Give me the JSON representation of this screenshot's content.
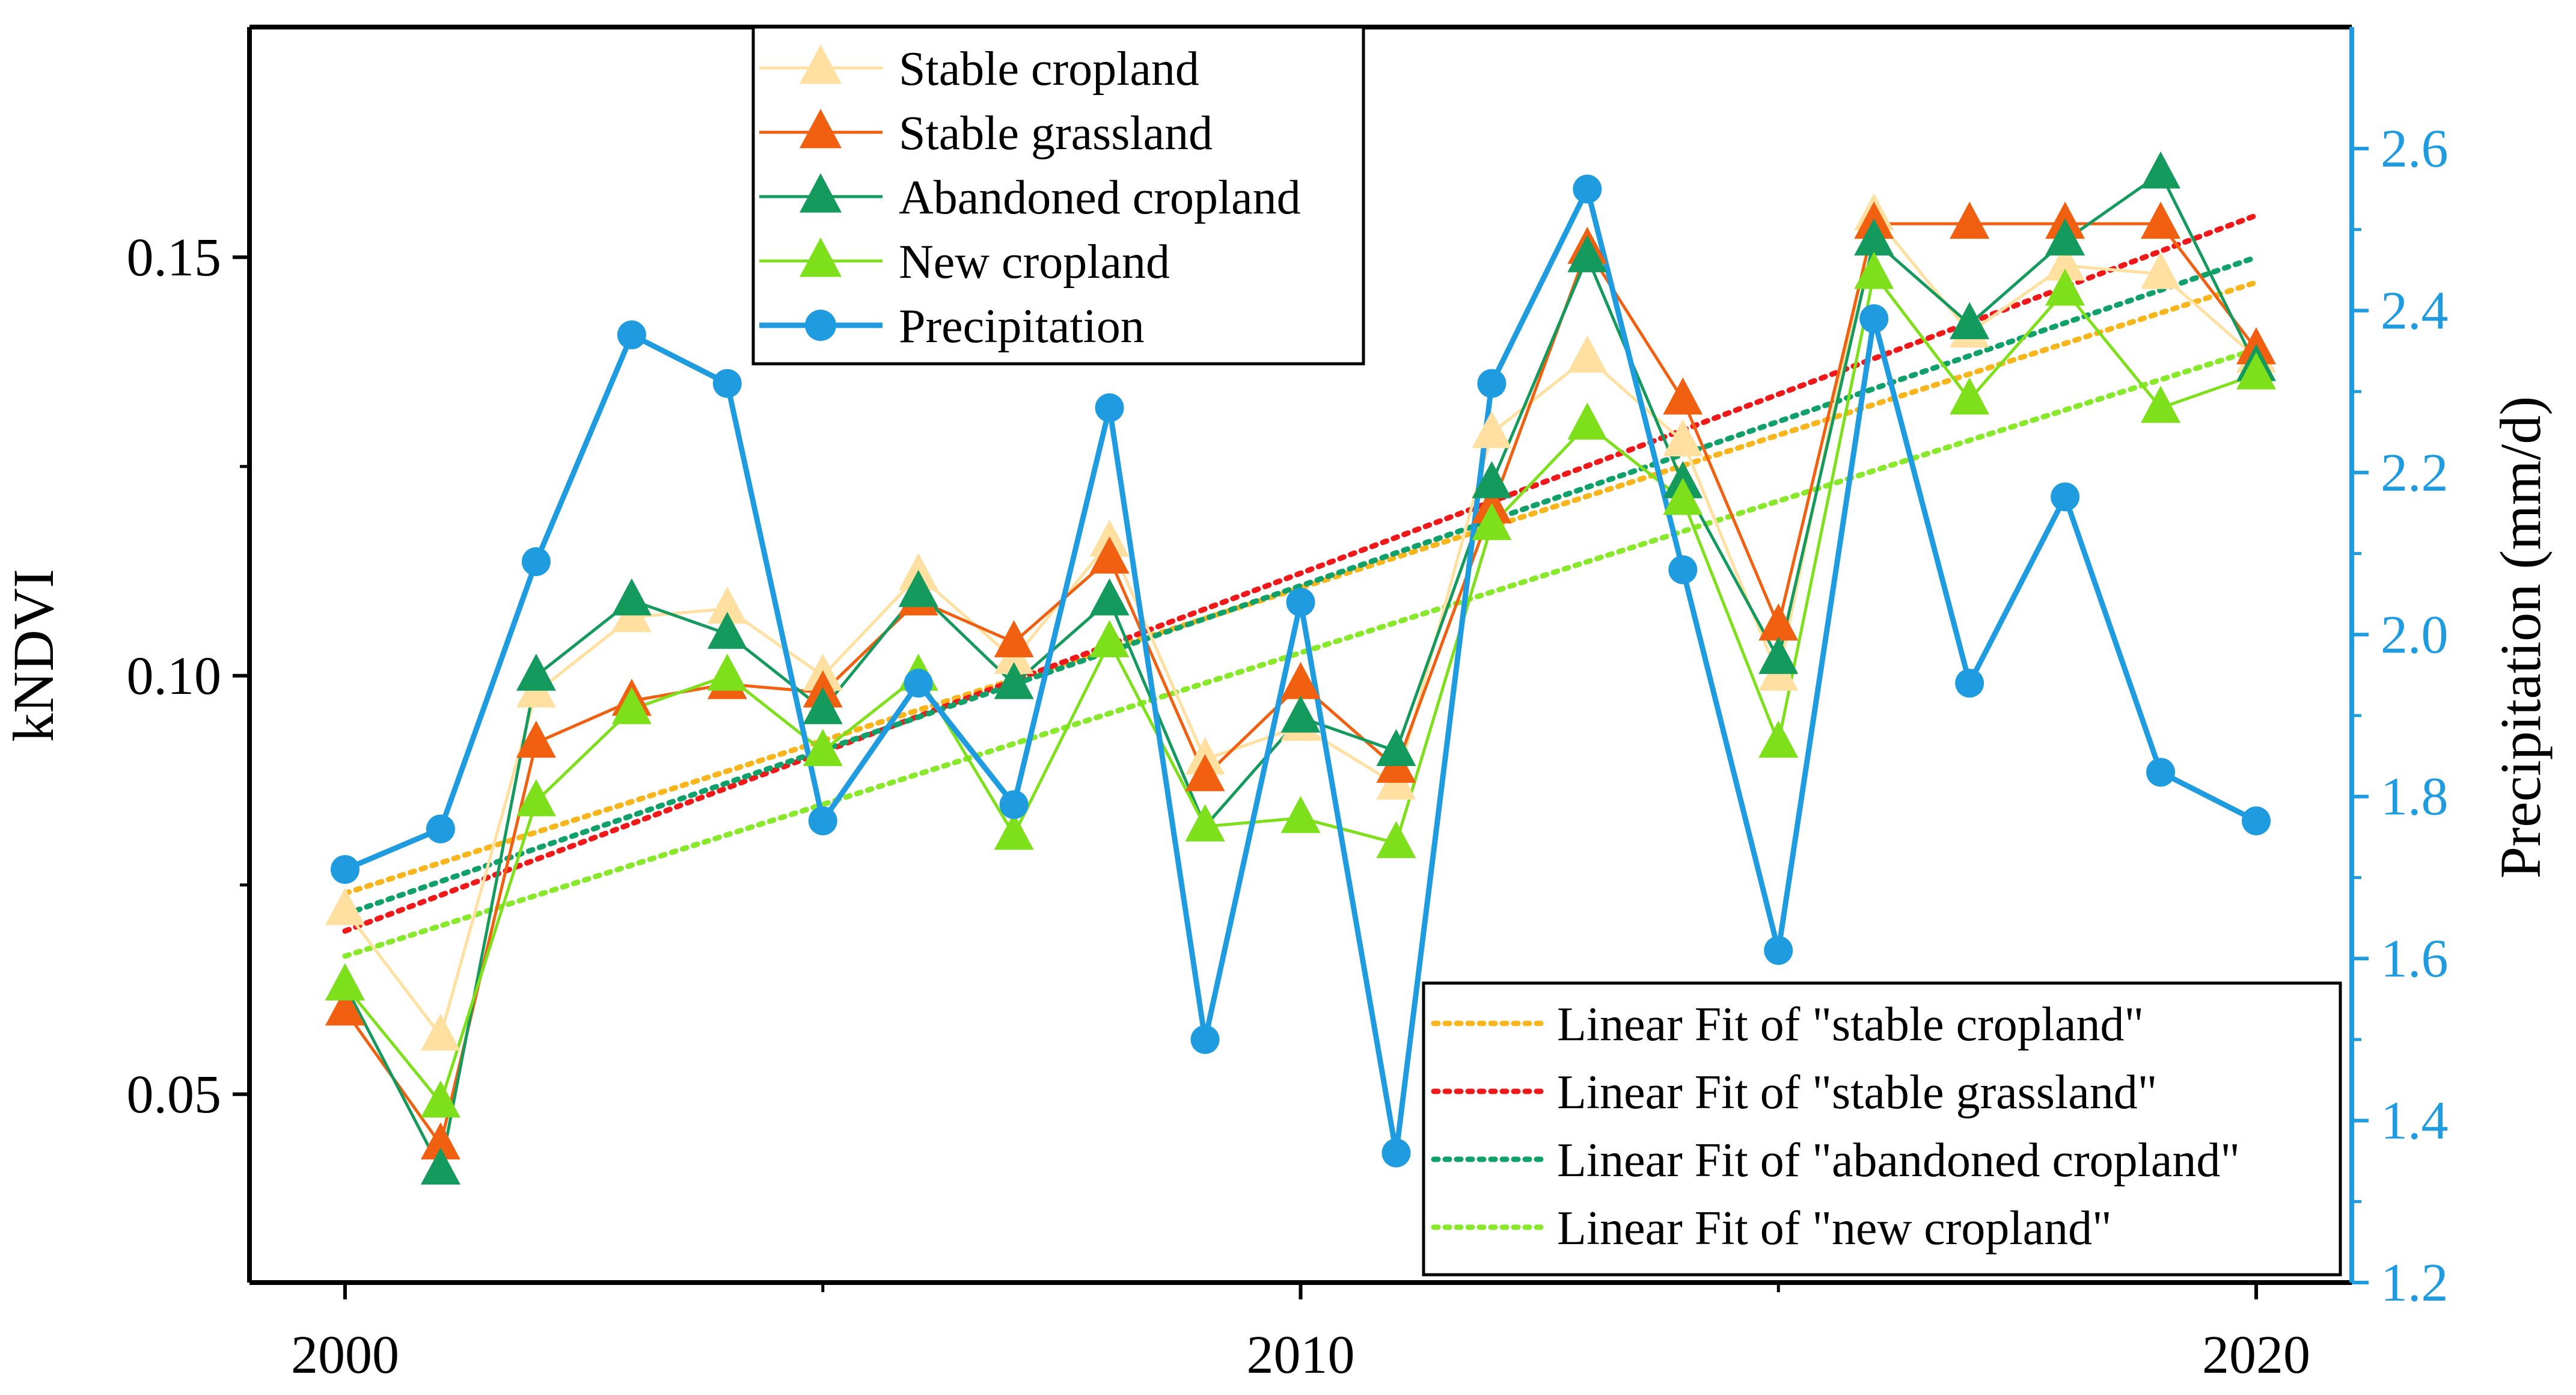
{
  "chart_data": {
    "type": "line",
    "title": "",
    "x": [
      2000,
      2001,
      2002,
      2003,
      2004,
      2005,
      2006,
      2007,
      2008,
      2009,
      2010,
      2011,
      2012,
      2013,
      2014,
      2015,
      2016,
      2017,
      2018,
      2019,
      2020
    ],
    "xlabel": "",
    "xticks": [
      2000,
      2010,
      2020
    ],
    "xtick_labels": [
      "2000",
      "2010",
      "2020"
    ],
    "xlim": [
      1999,
      2021
    ],
    "ylabel": "kNDVI",
    "ylim": [
      0.0275,
      0.1775
    ],
    "yticks": [
      0.05,
      0.1,
      0.15
    ],
    "ytick_labels": [
      "0.05",
      "0.10",
      "0.15"
    ],
    "y2label": "Precipitation (mm/d)",
    "y2lim": [
      1.2,
      2.75
    ],
    "y2ticks": [
      1.2,
      1.4,
      1.6,
      1.8,
      2.0,
      2.2,
      2.4,
      2.6
    ],
    "y2tick_labels": [
      "1.2",
      "1.4",
      "1.6",
      "1.8",
      "2.0",
      "2.2",
      "2.4",
      "2.6"
    ],
    "series": [
      {
        "name": "Stable cropland",
        "axis": "left",
        "marker": "triangle",
        "color": "#ffe0a0",
        "values": [
          0.072,
          0.057,
          0.098,
          0.107,
          0.108,
          0.1,
          0.112,
          0.102,
          0.116,
          0.09,
          0.094,
          0.087,
          0.129,
          0.138,
          0.128,
          0.1,
          0.155,
          0.141,
          0.149,
          0.148,
          0.138
        ]
      },
      {
        "name": "Stable grassland",
        "axis": "left",
        "marker": "triangle",
        "color": "#f06010",
        "values": [
          0.06,
          0.044,
          0.092,
          0.097,
          0.099,
          0.098,
          0.109,
          0.104,
          0.114,
          0.088,
          0.099,
          0.089,
          0.12,
          0.151,
          0.133,
          0.106,
          0.154,
          0.154,
          0.154,
          0.154,
          0.139
        ]
      },
      {
        "name": "Abandoned cropland",
        "axis": "left",
        "marker": "triangle",
        "color": "#159a5e",
        "values": [
          0.063,
          0.041,
          0.1,
          0.109,
          0.105,
          0.096,
          0.11,
          0.099,
          0.109,
          0.082,
          0.095,
          0.091,
          0.123,
          0.15,
          0.123,
          0.102,
          0.152,
          0.142,
          0.152,
          0.16,
          0.137
        ]
      },
      {
        "name": "New cropland",
        "axis": "left",
        "marker": "triangle",
        "color": "#7ee01a",
        "values": [
          0.063,
          0.049,
          0.085,
          0.096,
          0.1,
          0.091,
          0.1,
          0.081,
          0.104,
          0.082,
          0.083,
          0.08,
          0.118,
          0.13,
          0.121,
          0.092,
          0.148,
          0.133,
          0.146,
          0.132,
          0.136
        ]
      },
      {
        "name": "Precipitation",
        "axis": "right",
        "marker": "circle",
        "color": "#1f9be0",
        "values": [
          1.71,
          1.76,
          2.09,
          2.37,
          2.31,
          1.77,
          1.94,
          1.79,
          2.28,
          1.5,
          2.04,
          1.36,
          2.31,
          2.55,
          2.08,
          1.61,
          2.39,
          1.94,
          2.17,
          1.83,
          1.77
        ]
      }
    ],
    "fits": [
      {
        "name": "Linear Fit of \"stable cropland\"",
        "color": "#f8b51c",
        "start": [
          2000,
          0.074
        ],
        "end": [
          2020,
          0.147
        ]
      },
      {
        "name": "Linear Fit of \"stable grassland\"",
        "color": "#f01818",
        "start": [
          2000,
          0.0695
        ],
        "end": [
          2020,
          0.155
        ]
      },
      {
        "name": "Linear Fit of \"abandoned cropland\"",
        "color": "#10a06a",
        "start": [
          2000,
          0.0715
        ],
        "end": [
          2020,
          0.15
        ]
      },
      {
        "name": "Linear Fit of \"new cropland\"",
        "color": "#88e82a",
        "start": [
          2000,
          0.0665
        ],
        "end": [
          2020,
          0.139
        ]
      }
    ],
    "legend_top": {
      "placement": "top-left"
    },
    "legend_bottom": {
      "placement": "bottom-right"
    }
  }
}
